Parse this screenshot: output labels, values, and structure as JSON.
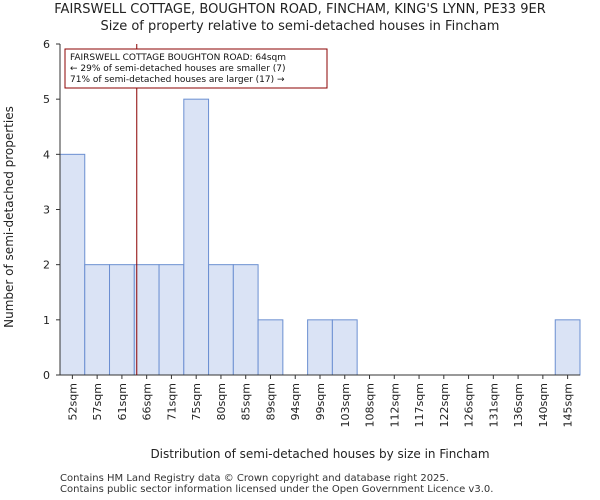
{
  "chart_data": {
    "type": "bar",
    "title": "FAIRSWELL COTTAGE, BOUGHTON ROAD, FINCHAM, KING'S LYNN, PE33 9ER",
    "subtitle": "Size of property relative to semi-detached houses in Fincham",
    "xlabel": "Distribution of semi-detached houses by size in Fincham",
    "ylabel": "Number of semi-detached properties",
    "categories": [
      "52sqm",
      "57sqm",
      "61sqm",
      "66sqm",
      "71sqm",
      "75sqm",
      "80sqm",
      "85sqm",
      "89sqm",
      "94sqm",
      "99sqm",
      "103sqm",
      "108sqm",
      "112sqm",
      "117sqm",
      "122sqm",
      "126sqm",
      "131sqm",
      "136sqm",
      "140sqm",
      "145sqm"
    ],
    "values": [
      4,
      2,
      2,
      2,
      2,
      5,
      2,
      2,
      1,
      0,
      1,
      1,
      0,
      0,
      0,
      0,
      0,
      0,
      0,
      0,
      1
    ],
    "ylim": [
      0,
      6
    ],
    "yticks": [
      0,
      1,
      2,
      3,
      4,
      5,
      6
    ],
    "grid": false,
    "bar_color": "#dae3f5",
    "bar_edge_color": "#6b8fd1",
    "marker": {
      "value_sqm": 64,
      "color": "#8b0000"
    },
    "annotation": {
      "lines": [
        "FAIRSWELL COTTAGE BOUGHTON ROAD: 64sqm",
        "← 29% of semi-detached houses are smaller (7)",
        "71% of semi-detached houses are larger (17) →"
      ],
      "border_color": "#8b0000"
    }
  },
  "footer": {
    "line1": "Contains HM Land Registry data © Crown copyright and database right 2025.",
    "line2": "Contains public sector information licensed under the Open Government Licence v3.0."
  }
}
